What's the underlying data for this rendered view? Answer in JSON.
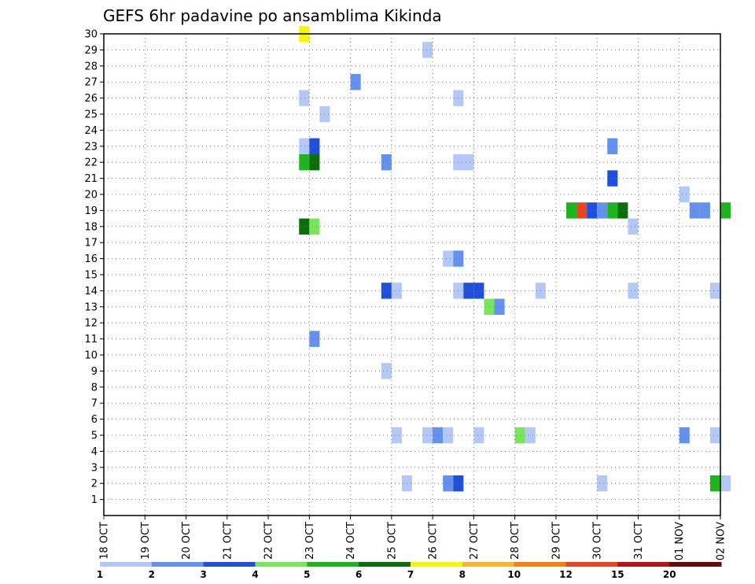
{
  "chart_data": {
    "type": "heatmap",
    "title": "GEFS 6hr padavine po ansamblima Kikinda",
    "xlabel": "",
    "ylabel": "",
    "y_ticks": [
      1,
      2,
      3,
      4,
      5,
      6,
      7,
      8,
      9,
      10,
      11,
      12,
      13,
      14,
      15,
      16,
      17,
      18,
      19,
      20,
      21,
      22,
      23,
      24,
      25,
      26,
      27,
      28,
      29,
      30
    ],
    "ylim": [
      0,
      30
    ],
    "x_ticks": [
      "18 OCT",
      "19 OCT",
      "20 OCT",
      "21 OCT",
      "22 OCT",
      "23 OCT",
      "24 OCT",
      "25 OCT",
      "26 OCT",
      "27 OCT",
      "28 OCT",
      "29 OCT",
      "30 OCT",
      "31 OCT",
      "01 NOV",
      "02 NOV"
    ],
    "x_range_days": [
      0,
      15
    ],
    "step_hours": 6,
    "grid": true,
    "colorbar": {
      "labels": [
        "1",
        "2",
        "3",
        "4",
        "5",
        "6",
        "7",
        "8",
        "10",
        "12",
        "15",
        "20"
      ],
      "colors": [
        "#b4c8f8",
        "#6490f0",
        "#1e50dc",
        "#78e65a",
        "#1eb41e",
        "#0a6e0a",
        "#f5f50a",
        "#fab42d",
        "#f5820f",
        "#e6461e",
        "#b41414",
        "#640a0a"
      ]
    },
    "cells": [
      {
        "member": 30,
        "time": "22 OCT 18z",
        "class": 7
      },
      {
        "member": 29,
        "time": "25 OCT 18z",
        "class": 1
      },
      {
        "member": 27,
        "time": "24 OCT 00z",
        "class": 2
      },
      {
        "member": 26,
        "time": "22 OCT 18z",
        "class": 1
      },
      {
        "member": 26,
        "time": "26 OCT 12z",
        "class": 1
      },
      {
        "member": 25,
        "time": "23 OCT 06z",
        "class": 1
      },
      {
        "member": 23,
        "time": "22 OCT 18z",
        "class": 1
      },
      {
        "member": 23,
        "time": "23 OCT 00z",
        "class": 3
      },
      {
        "member": 23,
        "time": "30 OCT 06z",
        "class": 2
      },
      {
        "member": 22,
        "time": "22 OCT 18z",
        "class": 5
      },
      {
        "member": 22,
        "time": "23 OCT 00z",
        "class": 6
      },
      {
        "member": 22,
        "time": "24 OCT 18z",
        "class": 2
      },
      {
        "member": 22,
        "time": "26 OCT 12z",
        "class": 1
      },
      {
        "member": 22,
        "time": "26 OCT 18z",
        "class": 1
      },
      {
        "member": 21,
        "time": "30 OCT 06z",
        "class": 3
      },
      {
        "member": 20,
        "time": "01 NOV 00z",
        "class": 1
      },
      {
        "member": 19,
        "time": "01 NOV 06z",
        "class": 2
      },
      {
        "member": 19,
        "time": "01 NOV 12z",
        "class": 2
      },
      {
        "member": 19,
        "time": "02 NOV 00z",
        "class": 5
      },
      {
        "member": 19,
        "time": "29 OCT 06z",
        "class": 5
      },
      {
        "member": 19,
        "time": "29 OCT 12z",
        "class": 10
      },
      {
        "member": 19,
        "time": "29 OCT 18z",
        "class": 3
      },
      {
        "member": 19,
        "time": "30 OCT 00z",
        "class": 2
      },
      {
        "member": 19,
        "time": "30 OCT 06z",
        "class": 5
      },
      {
        "member": 19,
        "time": "30 OCT 12z",
        "class": 6
      },
      {
        "member": 18,
        "time": "30 OCT 18z",
        "class": 1
      },
      {
        "member": 18,
        "time": "22 OCT 18z",
        "class": 6
      },
      {
        "member": 18,
        "time": "23 OCT 00z",
        "class": 4
      },
      {
        "member": 16,
        "time": "26 OCT 06z",
        "class": 1
      },
      {
        "member": 16,
        "time": "26 OCT 12z",
        "class": 2
      },
      {
        "member": 14,
        "time": "24 OCT 18z",
        "class": 3
      },
      {
        "member": 14,
        "time": "25 OCT 00z",
        "class": 1
      },
      {
        "member": 14,
        "time": "26 OCT 12z",
        "class": 1
      },
      {
        "member": 14,
        "time": "26 OCT 18z",
        "class": 3
      },
      {
        "member": 14,
        "time": "27 OCT 00z",
        "class": 3
      },
      {
        "member": 14,
        "time": "28 OCT 12z",
        "class": 1
      },
      {
        "member": 14,
        "time": "30 OCT 18z",
        "class": 1
      },
      {
        "member": 14,
        "time": "01 NOV 18z",
        "class": 1
      },
      {
        "member": 13,
        "time": "27 OCT 06z",
        "class": 4
      },
      {
        "member": 13,
        "time": "27 OCT 12z",
        "class": 2
      },
      {
        "member": 11,
        "time": "23 OCT 00z",
        "class": 2
      },
      {
        "member": 9,
        "time": "24 OCT 18z",
        "class": 1
      },
      {
        "member": 5,
        "time": "25 OCT 00z",
        "class": 1
      },
      {
        "member": 5,
        "time": "25 OCT 18z",
        "class": 1
      },
      {
        "member": 5,
        "time": "26 OCT 00z",
        "class": 2
      },
      {
        "member": 5,
        "time": "26 OCT 06z",
        "class": 1
      },
      {
        "member": 5,
        "time": "27 OCT 00z",
        "class": 1
      },
      {
        "member": 5,
        "time": "28 OCT 00z",
        "class": 4
      },
      {
        "member": 5,
        "time": "28 OCT 06z",
        "class": 1
      },
      {
        "member": 5,
        "time": "01 NOV 00z",
        "class": 2
      },
      {
        "member": 5,
        "time": "01 NOV 18z",
        "class": 1
      },
      {
        "member": 2,
        "time": "25 OCT 06z",
        "class": 1
      },
      {
        "member": 2,
        "time": "26 OCT 06z",
        "class": 2
      },
      {
        "member": 2,
        "time": "26 OCT 12z",
        "class": 3
      },
      {
        "member": 2,
        "time": "30 OCT 00z",
        "class": 1
      },
      {
        "member": 2,
        "time": "01 NOV 18z",
        "class": 5
      },
      {
        "member": 2,
        "time": "02 NOV 00z",
        "class": 1
      }
    ]
  }
}
